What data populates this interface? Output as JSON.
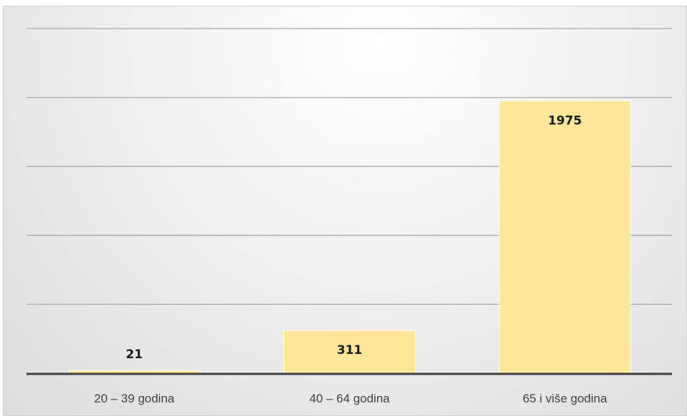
{
  "chart_data": {
    "type": "bar",
    "title": "",
    "xlabel": "",
    "ylabel": "",
    "categories": [
      "20 – 39 godina",
      "40 – 64 godina",
      "65 i više godina"
    ],
    "values": [
      21,
      311,
      1975
    ],
    "ylim": [
      0,
      2500
    ],
    "grid": true,
    "legend": "none",
    "bar_color": "#ffe699",
    "axis_color": "#404040",
    "gridline_color": "#a6a6a6"
  }
}
